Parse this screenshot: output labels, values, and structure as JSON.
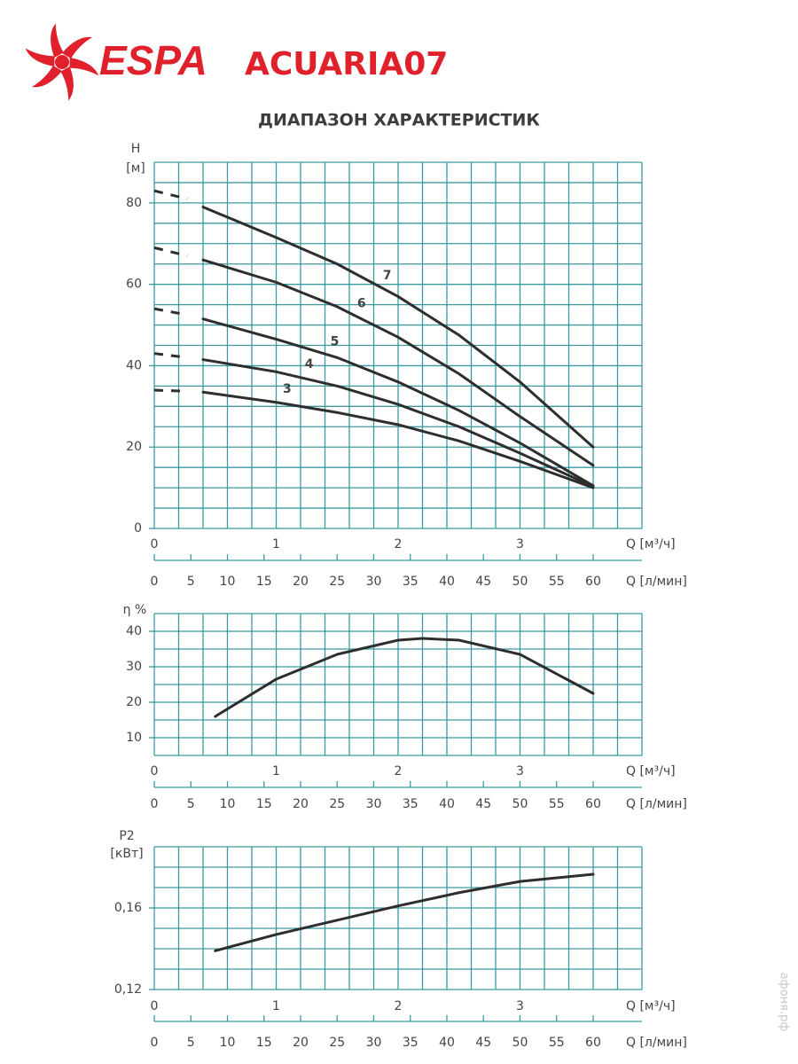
{
  "header": {
    "brand": "ESPA",
    "model": "ACUARIA07"
  },
  "title": "ДИАПАЗОН ХАРАКТЕРИСТИК",
  "watermark": "афоня.рф",
  "chart_data": [
    {
      "type": "line",
      "y_label": "H",
      "y_unit": "[м]",
      "x_label": "Q [м³/ч]",
      "x2_label": "Q [л/мин]",
      "xlim": [
        0,
        4
      ],
      "xticks": [
        0,
        1,
        2,
        3
      ],
      "x2lim": [
        0,
        66.67
      ],
      "x2ticks": [
        0,
        5,
        10,
        15,
        20,
        25,
        30,
        35,
        40,
        45,
        50,
        55,
        60
      ],
      "ylim": [
        0,
        90
      ],
      "yticks": [
        0,
        20,
        40,
        60,
        80
      ],
      "grid": true,
      "xgrid_step": 0.2,
      "ygrid_step": 5,
      "grid_color": "#3a9aa0",
      "series": [
        {
          "name": "3",
          "color": "#2e2e2e",
          "x": [
            0.4,
            1,
            1.5,
            2,
            2.5,
            3,
            3.6
          ],
          "values": [
            33.5,
            31,
            28.5,
            25.5,
            21.5,
            16.5,
            10
          ],
          "dashed": {
            "x": [
              0,
              0.27
            ],
            "values": [
              34,
              33.7
            ]
          }
        },
        {
          "name": "4",
          "color": "#2e2e2e",
          "x": [
            0.4,
            1,
            1.5,
            2,
            2.5,
            3,
            3.6
          ],
          "values": [
            41.5,
            38.5,
            35,
            30.5,
            25,
            18.5,
            10.3
          ],
          "dashed": {
            "x": [
              0,
              0.27
            ],
            "values": [
              43,
              42
            ]
          }
        },
        {
          "name": "5",
          "color": "#2e2e2e",
          "x": [
            0.4,
            1,
            1.5,
            2,
            2.5,
            3,
            3.6
          ],
          "values": [
            51.5,
            46.5,
            42,
            36,
            29,
            21,
            10.5
          ],
          "dashed": {
            "x": [
              0,
              0.27
            ],
            "values": [
              54,
              52.5
            ]
          }
        },
        {
          "name": "6",
          "color": "#2e2e2e",
          "x": [
            0.4,
            1,
            1.5,
            2,
            2.5,
            3,
            3.6
          ],
          "values": [
            66,
            60.5,
            54.5,
            47,
            38,
            27.5,
            15.5
          ],
          "dashed": {
            "x": [
              0,
              0.27
            ],
            "values": [
              69,
              67
            ]
          }
        },
        {
          "name": "7",
          "color": "#2e2e2e",
          "x": [
            0.4,
            1,
            1.5,
            2,
            2.5,
            3,
            3.6
          ],
          "values": [
            79,
            71.5,
            65,
            57,
            47.5,
            36,
            20
          ],
          "dashed": {
            "x": [
              0,
              0.27
            ],
            "values": [
              83,
              81
            ]
          }
        }
      ]
    },
    {
      "type": "line",
      "y_label": "η %",
      "x_label": "Q [м³/ч]",
      "x2_label": "Q [л/мин]",
      "xlim": [
        0,
        4
      ],
      "xticks": [
        0,
        1,
        2,
        3
      ],
      "x2lim": [
        0,
        66.67
      ],
      "x2ticks": [
        0,
        5,
        10,
        15,
        20,
        25,
        30,
        35,
        40,
        45,
        50,
        55,
        60
      ],
      "ylim": [
        5,
        45
      ],
      "yticks": [
        10,
        20,
        30,
        40
      ],
      "grid": true,
      "xgrid_step": 0.2,
      "ygrid_step": 5,
      "grid_color": "#3a9aa0",
      "series": [
        {
          "color": "#2e2e2e",
          "x": [
            0.5,
            1,
            1.5,
            2,
            2.2,
            2.5,
            3,
            3.6
          ],
          "values": [
            16,
            26.5,
            33.5,
            37.5,
            38,
            37.5,
            33.5,
            22.5
          ]
        }
      ]
    },
    {
      "type": "line",
      "y_label": "P2",
      "y_unit": "[кВт]",
      "x_label": "Q [м³/ч]",
      "x2_label": "Q [л/мин]",
      "xlim": [
        0,
        4
      ],
      "xticks": [
        0,
        1,
        2,
        3
      ],
      "x2lim": [
        0,
        66.67
      ],
      "x2ticks": [
        0,
        5,
        10,
        15,
        20,
        25,
        30,
        35,
        40,
        45,
        50,
        55,
        60
      ],
      "ylim": [
        0.12,
        0.19
      ],
      "yticks": [
        {
          "value": 0.12,
          "label": "0,12"
        },
        {
          "value": 0.16,
          "label": "0,16"
        }
      ],
      "grid": true,
      "xgrid_step": 0.2,
      "ygrid_step": 0.01,
      "grid_color": "#3a9aa0",
      "series": [
        {
          "color": "#2e2e2e",
          "x": [
            0.5,
            1,
            1.5,
            2,
            2.5,
            3,
            3.6
          ],
          "values": [
            0.139,
            0.147,
            0.154,
            0.161,
            0.1675,
            0.173,
            0.1765
          ]
        }
      ]
    }
  ]
}
